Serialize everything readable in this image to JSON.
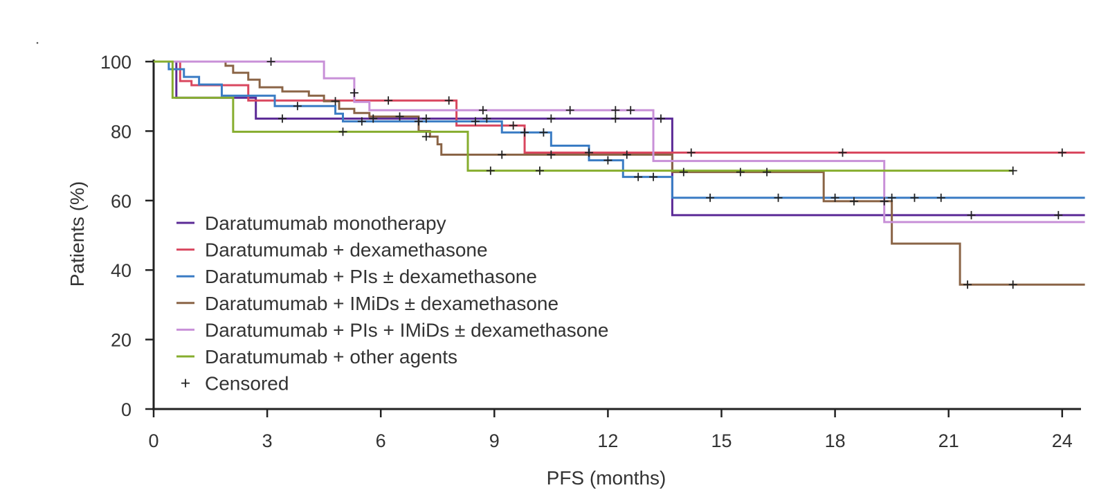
{
  "chart_data": {
    "type": "line",
    "subtype": "kaplan-meier step",
    "title": "",
    "xlabel": "PFS (months)",
    "ylabel": "Patients (%)",
    "xlim": [
      0,
      24.6
    ],
    "ylim": [
      0,
      100
    ],
    "xticks": [
      0,
      3,
      6,
      9,
      12,
      15,
      18,
      21,
      24
    ],
    "yticks": [
      0,
      20,
      40,
      60,
      80,
      100
    ],
    "grid": false,
    "legend_position": "lower-left",
    "censored_label": "Censored",
    "series": [
      {
        "name": "Daratumumab monotherapy",
        "color": "#5b2a96",
        "steps": [
          [
            0,
            100
          ],
          [
            0.6,
            89.6
          ],
          [
            2.7,
            83.6
          ],
          [
            13.7,
            55.8
          ],
          [
            24.6,
            55.8
          ]
        ],
        "censored": [
          [
            3.4,
            83.6
          ],
          [
            5.8,
            83.6
          ],
          [
            7.2,
            83.6
          ],
          [
            8.8,
            83.6
          ],
          [
            10.5,
            83.6
          ],
          [
            12.2,
            83.6
          ],
          [
            13.4,
            83.6
          ],
          [
            21.6,
            55.8
          ],
          [
            23.9,
            55.8
          ]
        ]
      },
      {
        "name": "Daratumumab + dexamethasone",
        "color": "#d9475f",
        "steps": [
          [
            0,
            100
          ],
          [
            0.7,
            94.4
          ],
          [
            1.0,
            93.2
          ],
          [
            2.5,
            88.8
          ],
          [
            8.0,
            81.6
          ],
          [
            9.8,
            73.8
          ],
          [
            24.6,
            73.8
          ]
        ],
        "censored": [
          [
            6.2,
            88.8
          ],
          [
            7.8,
            88.8
          ],
          [
            9.5,
            81.6
          ],
          [
            11.5,
            73.8
          ],
          [
            14.2,
            73.8
          ],
          [
            18.2,
            73.8
          ],
          [
            24.0,
            73.8
          ]
        ]
      },
      {
        "name": "Daratumumab + PIs ± dexamethasone",
        "color": "#3a7cc4",
        "steps": [
          [
            0,
            100
          ],
          [
            0.4,
            97.8
          ],
          [
            0.8,
            95.6
          ],
          [
            1.2,
            93.4
          ],
          [
            1.8,
            90.2
          ],
          [
            3.2,
            87.2
          ],
          [
            4.8,
            85.0
          ],
          [
            5.0,
            82.8
          ],
          [
            9.2,
            79.6
          ],
          [
            10.5,
            75.8
          ],
          [
            11.5,
            71.6
          ],
          [
            12.4,
            66.8
          ],
          [
            13.7,
            60.8
          ],
          [
            24.6,
            60.8
          ]
        ],
        "censored": [
          [
            3.8,
            87.2
          ],
          [
            5.5,
            82.8
          ],
          [
            7.0,
            82.8
          ],
          [
            8.5,
            82.8
          ],
          [
            9.8,
            79.6
          ],
          [
            10.3,
            79.6
          ],
          [
            12.0,
            71.6
          ],
          [
            12.8,
            66.8
          ],
          [
            13.2,
            66.8
          ],
          [
            14.7,
            60.8
          ],
          [
            16.5,
            60.8
          ],
          [
            18.0,
            60.8
          ],
          [
            19.5,
            60.8
          ],
          [
            20.1,
            60.8
          ],
          [
            20.8,
            60.8
          ]
        ]
      },
      {
        "name": "Daratumumab + IMiDs ± dexamethasone",
        "color": "#8a6446",
        "steps": [
          [
            0,
            100
          ],
          [
            1.9,
            98.8
          ],
          [
            2.1,
            96.8
          ],
          [
            2.5,
            94.8
          ],
          [
            2.8,
            92.6
          ],
          [
            3.4,
            91.4
          ],
          [
            4.1,
            90.2
          ],
          [
            4.5,
            88.6
          ],
          [
            4.9,
            86.4
          ],
          [
            5.3,
            85.2
          ],
          [
            5.7,
            84.2
          ],
          [
            7.0,
            80.0
          ],
          [
            7.3,
            78.4
          ],
          [
            7.5,
            76.2
          ],
          [
            7.6,
            73.2
          ],
          [
            13.7,
            68.2
          ],
          [
            17.7,
            59.8
          ],
          [
            19.5,
            47.6
          ],
          [
            21.3,
            35.8
          ],
          [
            24.6,
            35.8
          ]
        ],
        "censored": [
          [
            4.8,
            88.6
          ],
          [
            6.5,
            84.2
          ],
          [
            7.2,
            78.4
          ],
          [
            9.2,
            73.2
          ],
          [
            10.5,
            73.2
          ],
          [
            12.5,
            73.2
          ],
          [
            14.0,
            68.2
          ],
          [
            15.5,
            68.2
          ],
          [
            16.2,
            68.2
          ],
          [
            18.5,
            59.8
          ],
          [
            19.3,
            59.8
          ],
          [
            21.5,
            35.8
          ],
          [
            22.7,
            35.8
          ]
        ]
      },
      {
        "name": "Daratumumab + PIs + IMiDs ± dexamethasone",
        "color": "#c890d8",
        "steps": [
          [
            0,
            100
          ],
          [
            4.5,
            95.2
          ],
          [
            5.3,
            88.4
          ],
          [
            5.7,
            86.0
          ],
          [
            13.2,
            71.4
          ],
          [
            19.3,
            53.8
          ],
          [
            24.6,
            53.8
          ]
        ],
        "censored": [
          [
            3.1,
            100
          ],
          [
            5.3,
            91.0
          ],
          [
            8.7,
            86.0
          ],
          [
            11.0,
            86.0
          ],
          [
            12.2,
            86.0
          ],
          [
            12.6,
            86.0
          ]
        ]
      },
      {
        "name": "Daratumumab + other agents",
        "color": "#86ad2e",
        "steps": [
          [
            0,
            100
          ],
          [
            0.5,
            89.6
          ],
          [
            2.1,
            79.8
          ],
          [
            8.3,
            68.6
          ],
          [
            22.7,
            68.6
          ]
        ],
        "censored": [
          [
            5.0,
            79.8
          ],
          [
            8.9,
            68.6
          ],
          [
            10.2,
            68.6
          ],
          [
            22.7,
            68.6
          ]
        ]
      }
    ]
  }
}
